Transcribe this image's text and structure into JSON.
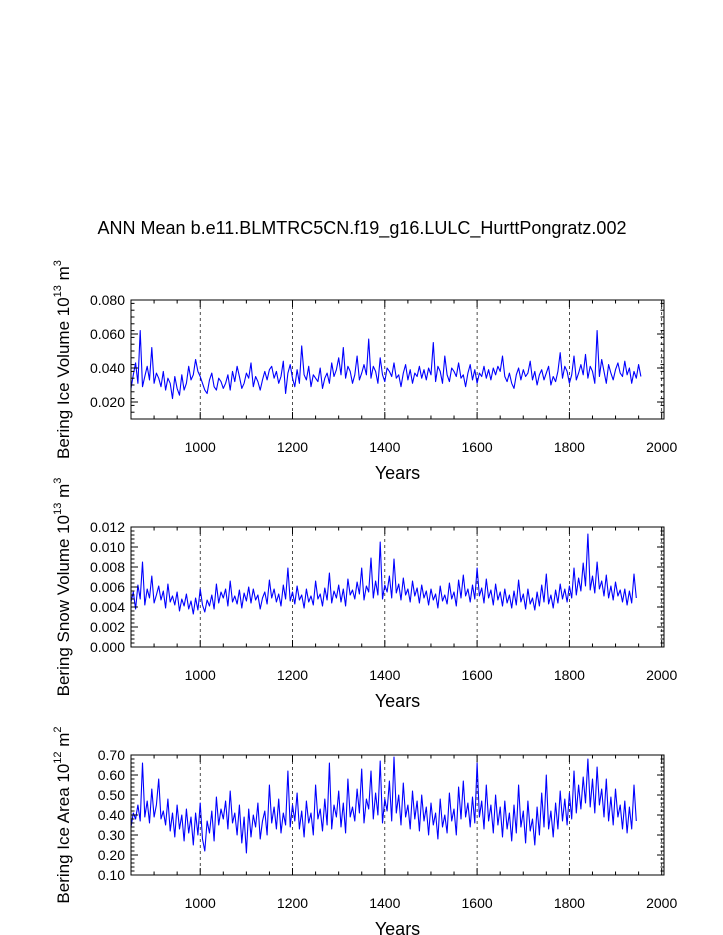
{
  "title": "ANN Mean b.e11.BLMTRC5CN.f19_g16.LULC_HurttPongratz.002",
  "line_color": "#0000ff",
  "chart_data": [
    {
      "type": "line",
      "title": "ANN Mean b.e11.BLMTRC5CN.f19_g16.LULC_HurttPongratz.002",
      "xlabel": "Years",
      "ylabel_main": "Bering Ice Volume 10",
      "ylabel_exp": "13",
      "ylabel_unit": " m",
      "ylabel_unit_exp": "3",
      "xlim": [
        850,
        2005
      ],
      "ylim": [
        0.01,
        0.08
      ],
      "xticks": [
        1000,
        1200,
        1400,
        1600,
        1800,
        2000
      ],
      "xtick_labels": [
        "1000",
        "1200",
        "1400",
        "1600",
        "1800",
        "2000"
      ],
      "yticks": [
        0.02,
        0.04,
        0.06,
        0.08
      ],
      "ytick_labels": [
        "0.020",
        "0.040",
        "0.060",
        "0.080"
      ],
      "grid": "vertical dashed at major x ticks",
      "series": [
        {
          "name": "Bering Ice Volume",
          "x_start": 850,
          "x_step": 5,
          "values": [
            0.028,
            0.036,
            0.043,
            0.031,
            0.062,
            0.029,
            0.035,
            0.041,
            0.033,
            0.052,
            0.031,
            0.037,
            0.034,
            0.029,
            0.038,
            0.027,
            0.034,
            0.031,
            0.022,
            0.035,
            0.028,
            0.024,
            0.036,
            0.027,
            0.031,
            0.041,
            0.033,
            0.036,
            0.045,
            0.038,
            0.035,
            0.031,
            0.027,
            0.025,
            0.033,
            0.037,
            0.029,
            0.027,
            0.034,
            0.032,
            0.028,
            0.031,
            0.036,
            0.027,
            0.038,
            0.032,
            0.041,
            0.035,
            0.028,
            0.031,
            0.037,
            0.034,
            0.043,
            0.029,
            0.035,
            0.032,
            0.027,
            0.033,
            0.038,
            0.033,
            0.039,
            0.041,
            0.034,
            0.038,
            0.031,
            0.035,
            0.044,
            0.025,
            0.037,
            0.042,
            0.034,
            0.029,
            0.039,
            0.031,
            0.053,
            0.036,
            0.033,
            0.041,
            0.029,
            0.036,
            0.034,
            0.032,
            0.04,
            0.028,
            0.034,
            0.037,
            0.031,
            0.043,
            0.035,
            0.039,
            0.046,
            0.036,
            0.052,
            0.034,
            0.041,
            0.038,
            0.031,
            0.036,
            0.047,
            0.033,
            0.037,
            0.042,
            0.036,
            0.057,
            0.034,
            0.041,
            0.038,
            0.031,
            0.046,
            0.036,
            0.032,
            0.04,
            0.038,
            0.035,
            0.043,
            0.034,
            0.036,
            0.029,
            0.037,
            0.042,
            0.033,
            0.039,
            0.031,
            0.037,
            0.035,
            0.041,
            0.034,
            0.039,
            0.033,
            0.04,
            0.036,
            0.055,
            0.032,
            0.041,
            0.038,
            0.031,
            0.047,
            0.036,
            0.032,
            0.04,
            0.038,
            0.035,
            0.043,
            0.034,
            0.036,
            0.029,
            0.037,
            0.042,
            0.033,
            0.039,
            0.031,
            0.037,
            0.035,
            0.041,
            0.034,
            0.039,
            0.033,
            0.04,
            0.036,
            0.041,
            0.038,
            0.047,
            0.035,
            0.032,
            0.037,
            0.031,
            0.028,
            0.036,
            0.04,
            0.033,
            0.039,
            0.035,
            0.037,
            0.044,
            0.033,
            0.038,
            0.03,
            0.036,
            0.039,
            0.033,
            0.037,
            0.041,
            0.03,
            0.035,
            0.032,
            0.038,
            0.049,
            0.034,
            0.041,
            0.038,
            0.031,
            0.036,
            0.047,
            0.033,
            0.037,
            0.042,
            0.036,
            0.048,
            0.034,
            0.041,
            0.038,
            0.031,
            0.062,
            0.035,
            0.045,
            0.038,
            0.031,
            0.042,
            0.037,
            0.033,
            0.039,
            0.043,
            0.037,
            0.035,
            0.044,
            0.036,
            0.04,
            0.031,
            0.038,
            0.034,
            0.042,
            0.035
          ],
          "color": "#0000ff"
        }
      ]
    },
    {
      "type": "line",
      "title": "",
      "xlabel": "Years",
      "ylabel_main": "Bering Snow Volume 10",
      "ylabel_exp": "13",
      "ylabel_unit": " m",
      "ylabel_unit_exp": "3",
      "xlim": [
        850,
        2005
      ],
      "ylim": [
        0.0,
        0.012
      ],
      "xticks": [
        1000,
        1200,
        1400,
        1600,
        1800,
        2000
      ],
      "xtick_labels": [
        "1000",
        "1200",
        "1400",
        "1600",
        "1800",
        "2000"
      ],
      "yticks": [
        0.0,
        0.002,
        0.004,
        0.006,
        0.008,
        0.01,
        0.012
      ],
      "ytick_labels": [
        "0.000",
        "0.002",
        "0.004",
        "0.006",
        "0.008",
        "0.010",
        "0.012"
      ],
      "grid": "vertical dashed at major x ticks",
      "series": [
        {
          "name": "Bering Snow Volume",
          "x_start": 850,
          "x_step": 5,
          "values": [
            0.0045,
            0.0055,
            0.0038,
            0.0062,
            0.0048,
            0.0085,
            0.0042,
            0.0058,
            0.0049,
            0.0071,
            0.0044,
            0.0052,
            0.0061,
            0.0047,
            0.0056,
            0.0039,
            0.0063,
            0.0045,
            0.0051,
            0.0042,
            0.0055,
            0.0036,
            0.0048,
            0.0041,
            0.0053,
            0.0038,
            0.0046,
            0.0033,
            0.0049,
            0.0037,
            0.0058,
            0.0042,
            0.0035,
            0.0047,
            0.0041,
            0.0052,
            0.0038,
            0.0063,
            0.0044,
            0.0055,
            0.0049,
            0.0058,
            0.0041,
            0.0066,
            0.0045,
            0.0051,
            0.0043,
            0.0057,
            0.0039,
            0.0054,
            0.0046,
            0.006,
            0.0044,
            0.0058,
            0.0047,
            0.0052,
            0.0038,
            0.0049,
            0.0055,
            0.0043,
            0.0067,
            0.0049,
            0.0058,
            0.0045,
            0.0053,
            0.0041,
            0.0062,
            0.0048,
            0.0079,
            0.0046,
            0.0055,
            0.0043,
            0.0061,
            0.0047,
            0.0052,
            0.0039,
            0.0058,
            0.0045,
            0.0051,
            0.0042,
            0.0066,
            0.0048,
            0.0053,
            0.0041,
            0.0059,
            0.0047,
            0.0074,
            0.0044,
            0.0056,
            0.0049,
            0.0062,
            0.0045,
            0.0058,
            0.0041,
            0.0068,
            0.0052,
            0.0057,
            0.0048,
            0.0065,
            0.0053,
            0.0079,
            0.0047,
            0.0061,
            0.0055,
            0.0089,
            0.0049,
            0.0066,
            0.0052,
            0.0105,
            0.0048,
            0.0062,
            0.0055,
            0.0071,
            0.0049,
            0.0088,
            0.0054,
            0.0063,
            0.0047,
            0.0069,
            0.0052,
            0.0058,
            0.0045,
            0.0066,
            0.0051,
            0.0059,
            0.0044,
            0.0062,
            0.0049,
            0.0056,
            0.0042,
            0.0058,
            0.0047,
            0.0053,
            0.0039,
            0.0061,
            0.0046,
            0.0052,
            0.0043,
            0.0064,
            0.0048,
            0.0055,
            0.0041,
            0.0067,
            0.0049,
            0.0072,
            0.0051,
            0.0058,
            0.0045,
            0.0062,
            0.0048,
            0.0079,
            0.0051,
            0.0059,
            0.0044,
            0.0068,
            0.0049,
            0.0057,
            0.0042,
            0.0063,
            0.0047,
            0.0055,
            0.0041,
            0.0058,
            0.0044,
            0.0052,
            0.0039,
            0.0056,
            0.0042,
            0.0067,
            0.0045,
            0.0053,
            0.0038,
            0.0058,
            0.0043,
            0.0049,
            0.0037,
            0.0055,
            0.0041,
            0.0062,
            0.0045,
            0.0073,
            0.0043,
            0.0052,
            0.0039,
            0.0057,
            0.0044,
            0.0063,
            0.0048,
            0.0058,
            0.0045,
            0.0061,
            0.0049,
            0.0079,
            0.0052,
            0.0069,
            0.0056,
            0.0084,
            0.0061,
            0.0113,
            0.0057,
            0.0071,
            0.0054,
            0.0085,
            0.0058,
            0.0066,
            0.0051,
            0.0072,
            0.0049,
            0.0061,
            0.0047,
            0.0065,
            0.0051,
            0.0057,
            0.0045,
            0.0058,
            0.0042,
            0.0056,
            0.0044,
            0.0073,
            0.0049
          ],
          "color": "#0000ff"
        }
      ]
    },
    {
      "type": "line",
      "title": "",
      "xlabel": "Years",
      "ylabel_main": "Bering Ice Area 10",
      "ylabel_exp": "12",
      "ylabel_unit": " m",
      "ylabel_unit_exp": "2",
      "xlim": [
        850,
        2005
      ],
      "ylim": [
        0.1,
        0.7
      ],
      "xticks": [
        1000,
        1200,
        1400,
        1600,
        1800,
        2000
      ],
      "xtick_labels": [
        "1000",
        "1200",
        "1400",
        "1600",
        "1800",
        "2000"
      ],
      "yticks": [
        0.1,
        0.2,
        0.3,
        0.4,
        0.5,
        0.6,
        0.7
      ],
      "ytick_labels": [
        "0.10",
        "0.20",
        "0.30",
        "0.40",
        "0.50",
        "0.60",
        "0.70"
      ],
      "grid": "vertical dashed at major x ticks",
      "series": [
        {
          "name": "Bering Ice Area",
          "x_start": 850,
          "x_step": 5,
          "values": [
            0.34,
            0.41,
            0.38,
            0.45,
            0.37,
            0.66,
            0.39,
            0.47,
            0.36,
            0.53,
            0.39,
            0.45,
            0.58,
            0.38,
            0.42,
            0.35,
            0.48,
            0.32,
            0.41,
            0.29,
            0.45,
            0.33,
            0.4,
            0.27,
            0.43,
            0.31,
            0.39,
            0.25,
            0.41,
            0.3,
            0.46,
            0.28,
            0.22,
            0.37,
            0.31,
            0.42,
            0.27,
            0.49,
            0.35,
            0.43,
            0.38,
            0.47,
            0.33,
            0.52,
            0.36,
            0.41,
            0.3,
            0.45,
            0.26,
            0.39,
            0.21,
            0.43,
            0.29,
            0.4,
            0.34,
            0.46,
            0.28,
            0.37,
            0.42,
            0.3,
            0.55,
            0.36,
            0.44,
            0.33,
            0.48,
            0.31,
            0.41,
            0.35,
            0.62,
            0.34,
            0.45,
            0.37,
            0.51,
            0.33,
            0.42,
            0.29,
            0.47,
            0.36,
            0.41,
            0.3,
            0.55,
            0.38,
            0.43,
            0.32,
            0.48,
            0.35,
            0.66,
            0.33,
            0.45,
            0.39,
            0.52,
            0.34,
            0.46,
            0.31,
            0.58,
            0.39,
            0.44,
            0.37,
            0.53,
            0.41,
            0.63,
            0.36,
            0.48,
            0.43,
            0.62,
            0.38,
            0.51,
            0.4,
            0.67,
            0.36,
            0.48,
            0.42,
            0.57,
            0.37,
            0.69,
            0.41,
            0.5,
            0.35,
            0.56,
            0.39,
            0.45,
            0.33,
            0.52,
            0.38,
            0.47,
            0.32,
            0.5,
            0.37,
            0.44,
            0.3,
            0.46,
            0.35,
            0.41,
            0.28,
            0.48,
            0.34,
            0.4,
            0.31,
            0.51,
            0.37,
            0.43,
            0.3,
            0.54,
            0.38,
            0.57,
            0.39,
            0.46,
            0.34,
            0.49,
            0.36,
            0.66,
            0.39,
            0.47,
            0.33,
            0.55,
            0.37,
            0.45,
            0.31,
            0.5,
            0.35,
            0.44,
            0.29,
            0.47,
            0.33,
            0.41,
            0.27,
            0.45,
            0.31,
            0.55,
            0.34,
            0.42,
            0.26,
            0.47,
            0.32,
            0.38,
            0.25,
            0.44,
            0.3,
            0.51,
            0.34,
            0.6,
            0.33,
            0.42,
            0.29,
            0.46,
            0.33,
            0.52,
            0.37,
            0.48,
            0.35,
            0.51,
            0.38,
            0.62,
            0.41,
            0.55,
            0.43,
            0.59,
            0.46,
            0.68,
            0.44,
            0.58,
            0.41,
            0.64,
            0.45,
            0.53,
            0.39,
            0.58,
            0.37,
            0.49,
            0.35,
            0.53,
            0.39,
            0.45,
            0.33,
            0.47,
            0.31,
            0.44,
            0.33,
            0.55,
            0.37
          ],
          "color": "#0000ff"
        }
      ]
    }
  ]
}
